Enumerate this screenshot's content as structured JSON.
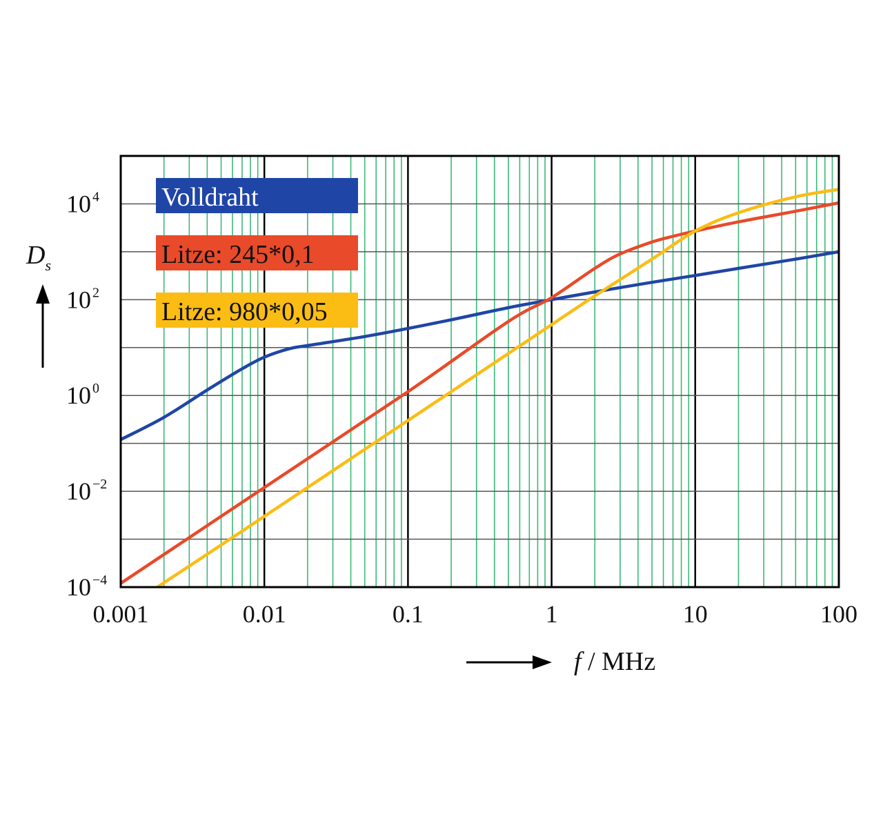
{
  "chart_data": {
    "type": "line",
    "x_scale": "log",
    "y_scale": "log",
    "xlim": [
      0.001,
      100
    ],
    "ylim": [
      0.0001,
      100000
    ],
    "x_ticks": [
      "0.001",
      "0.01",
      "0.1",
      "1",
      "10",
      "100"
    ],
    "y_ticks": [
      {
        "base": "10",
        "exp": "4",
        "value": 10000
      },
      {
        "base": "10",
        "exp": "2",
        "value": 100
      },
      {
        "base": "10",
        "exp": "0",
        "value": 1
      },
      {
        "base": "10",
        "exp": "−2",
        "value": 0.01
      },
      {
        "base": "10",
        "exp": "−4",
        "value": 0.0001
      }
    ],
    "xlabel": {
      "var": "f",
      "unit": " / MHz"
    },
    "ylabel": {
      "var": "D",
      "sub": "s"
    },
    "grid": true,
    "colors": {
      "minor_grid": "#3cb878",
      "major_grid": "#000000",
      "horizontal_grid": "#555555"
    },
    "series": [
      {
        "name": "Volldraht",
        "color": "#1f45a6",
        "text_color": "#ffffff",
        "points": [
          [
            0.001,
            0.12
          ],
          [
            0.002,
            0.35
          ],
          [
            0.004,
            1.3
          ],
          [
            0.007,
            3.6
          ],
          [
            0.01,
            6.3
          ],
          [
            0.015,
            9.5
          ],
          [
            0.02,
            11
          ],
          [
            0.05,
            17
          ],
          [
            0.1,
            25
          ],
          [
            0.2,
            38
          ],
          [
            0.5,
            68
          ],
          [
            1,
            100
          ],
          [
            2,
            145
          ],
          [
            5,
            230
          ],
          [
            10,
            320
          ],
          [
            20,
            450
          ],
          [
            50,
            700
          ],
          [
            100,
            1000
          ]
        ]
      },
      {
        "name": "Litze: 245*0,1",
        "color": "#e84a2a",
        "text_color": "#111111",
        "points": [
          [
            0.001,
            0.00012
          ],
          [
            0.01,
            0.012
          ],
          [
            0.1,
            1.2
          ],
          [
            0.5,
            35
          ],
          [
            1,
            110
          ],
          [
            2,
            450
          ],
          [
            3,
            900
          ],
          [
            5,
            1600
          ],
          [
            7,
            2100
          ],
          [
            10,
            2700
          ],
          [
            20,
            4200
          ],
          [
            50,
            7000
          ],
          [
            100,
            10500
          ]
        ]
      },
      {
        "name": "Litze: 980*0,05",
        "color": "#fbbd14",
        "text_color": "#111111",
        "points": [
          [
            0.0018,
            0.0001
          ],
          [
            0.01,
            0.003
          ],
          [
            0.1,
            0.3
          ],
          [
            1,
            30
          ],
          [
            2,
            120
          ],
          [
            5,
            700
          ],
          [
            10,
            2700
          ],
          [
            20,
            6500
          ],
          [
            50,
            14000
          ],
          [
            100,
            20000
          ]
        ]
      }
    ]
  }
}
